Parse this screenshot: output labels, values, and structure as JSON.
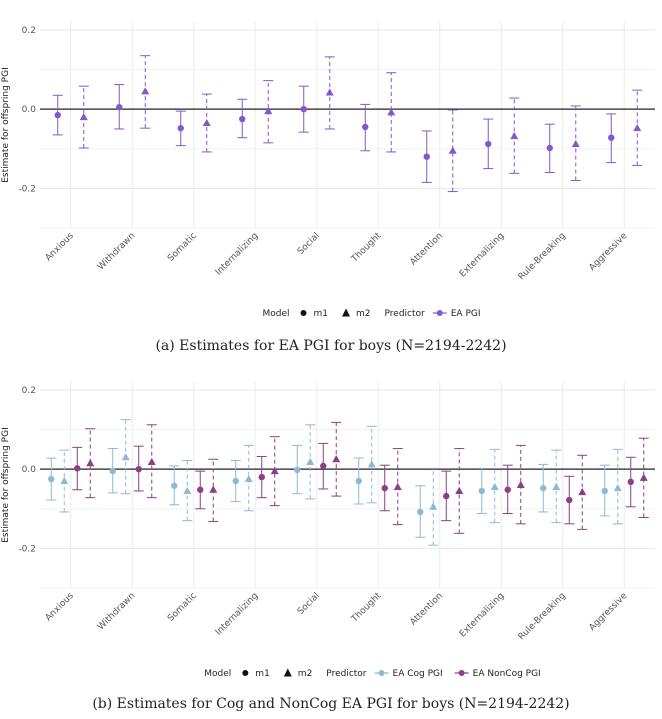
{
  "chart_data": [
    {
      "type": "errorbar",
      "panel": "a",
      "ylabel": "Estimate for offspring PGI",
      "ylim": [
        -0.3,
        0.22
      ],
      "yticks": [
        -0.2,
        0.0,
        0.2
      ],
      "ytick_labels": [
        "-0.2",
        "0.0",
        "0.2"
      ],
      "categories": [
        "Anxious",
        "Withdrawn",
        "Somatic",
        "Internalizing",
        "Social",
        "Thought",
        "Attention",
        "Externalizing",
        "Rule-Breaking",
        "Aggressive"
      ],
      "legend": {
        "model_title": "Model",
        "model_items": [
          "m1",
          "m2"
        ],
        "predictor_title": "Predictor",
        "predictor_items": [
          "EA PGI"
        ]
      },
      "series": [
        {
          "name": "EA PGI",
          "model": "m1",
          "color": "#8159c9",
          "est": [
            -0.015,
            0.005,
            -0.048,
            -0.025,
            0.0,
            -0.045,
            -0.12,
            -0.088,
            -0.098,
            -0.072
          ],
          "lo": [
            -0.065,
            -0.05,
            -0.092,
            -0.072,
            -0.058,
            -0.105,
            -0.185,
            -0.15,
            -0.16,
            -0.135
          ],
          "hi": [
            0.035,
            0.062,
            -0.005,
            0.025,
            0.058,
            0.012,
            -0.055,
            -0.025,
            -0.038,
            -0.012
          ]
        },
        {
          "name": "EA PGI",
          "model": "m2",
          "color": "#8159c9",
          "est": [
            -0.02,
            0.045,
            -0.035,
            -0.005,
            0.042,
            -0.008,
            -0.105,
            -0.068,
            -0.088,
            -0.048
          ],
          "lo": [
            -0.098,
            -0.048,
            -0.108,
            -0.085,
            -0.05,
            -0.108,
            -0.208,
            -0.162,
            -0.18,
            -0.142
          ],
          "hi": [
            0.058,
            0.135,
            0.038,
            0.072,
            0.132,
            0.092,
            -0.002,
            0.028,
            0.008,
            0.048
          ]
        }
      ]
    },
    {
      "type": "errorbar",
      "panel": "b",
      "ylabel": "Estimate for offspring PGI",
      "ylim": [
        -0.3,
        0.22
      ],
      "yticks": [
        -0.2,
        0.0,
        0.2
      ],
      "ytick_labels": [
        "-0.2",
        "0.0",
        "0.2"
      ],
      "categories": [
        "Anxious",
        "Withdrawn",
        "Somatic",
        "Internalizing",
        "Social",
        "Thought",
        "Attention",
        "Externalizing",
        "Rule-Breaking",
        "Aggressive"
      ],
      "legend": {
        "model_title": "Model",
        "model_items": [
          "m1",
          "m2"
        ],
        "predictor_title": "Predictor",
        "predictor_items": [
          "EA Cog PGI",
          "EA NonCog PGI"
        ]
      },
      "series": [
        {
          "name": "EA Cog PGI",
          "model": "m1",
          "color": "#8db8d6",
          "est": [
            -0.025,
            -0.005,
            -0.042,
            -0.03,
            -0.002,
            -0.03,
            -0.108,
            -0.055,
            -0.048,
            -0.055
          ],
          "lo": [
            -0.078,
            -0.06,
            -0.09,
            -0.082,
            -0.062,
            -0.088,
            -0.172,
            -0.112,
            -0.108,
            -0.118
          ],
          "hi": [
            0.028,
            0.052,
            0.008,
            0.022,
            0.06,
            0.028,
            -0.042,
            0.002,
            0.012,
            0.01
          ]
        },
        {
          "name": "EA Cog PGI",
          "model": "m2",
          "color": "#8db8d6",
          "est": [
            -0.03,
            0.03,
            -0.055,
            -0.025,
            0.018,
            0.012,
            -0.095,
            -0.045,
            -0.045,
            -0.048
          ],
          "lo": [
            -0.108,
            -0.062,
            -0.13,
            -0.105,
            -0.075,
            -0.085,
            -0.192,
            -0.135,
            -0.135,
            -0.138
          ],
          "hi": [
            0.048,
            0.125,
            0.022,
            0.06,
            0.112,
            0.108,
            0.002,
            0.05,
            0.048,
            0.05
          ]
        },
        {
          "name": "EA NonCog PGI",
          "model": "m1",
          "color": "#8b3f86",
          "est": [
            0.002,
            0.0,
            -0.052,
            -0.02,
            0.008,
            -0.048,
            -0.068,
            -0.052,
            -0.078,
            -0.032
          ],
          "lo": [
            -0.052,
            -0.055,
            -0.1,
            -0.072,
            -0.05,
            -0.105,
            -0.13,
            -0.112,
            -0.138,
            -0.095
          ],
          "hi": [
            0.055,
            0.058,
            -0.005,
            0.032,
            0.065,
            0.01,
            -0.005,
            0.01,
            -0.018,
            0.03
          ]
        },
        {
          "name": "EA NonCog PGI",
          "model": "m2",
          "color": "#8b3f86",
          "est": [
            0.015,
            0.018,
            -0.052,
            -0.005,
            0.025,
            -0.045,
            -0.055,
            -0.04,
            -0.058,
            -0.022
          ],
          "lo": [
            -0.072,
            -0.072,
            -0.132,
            -0.092,
            -0.068,
            -0.14,
            -0.162,
            -0.138,
            -0.152,
            -0.122
          ],
          "hi": [
            0.102,
            0.112,
            0.025,
            0.082,
            0.118,
            0.052,
            0.052,
            0.06,
            0.035,
            0.078
          ]
        }
      ]
    }
  ],
  "captions": {
    "a": "(a) Estimates for EA PGI for boys (N=2194-2242)",
    "b": "(b) Estimates for Cog and NonCog EA PGI for boys (N=2194-2242)"
  }
}
